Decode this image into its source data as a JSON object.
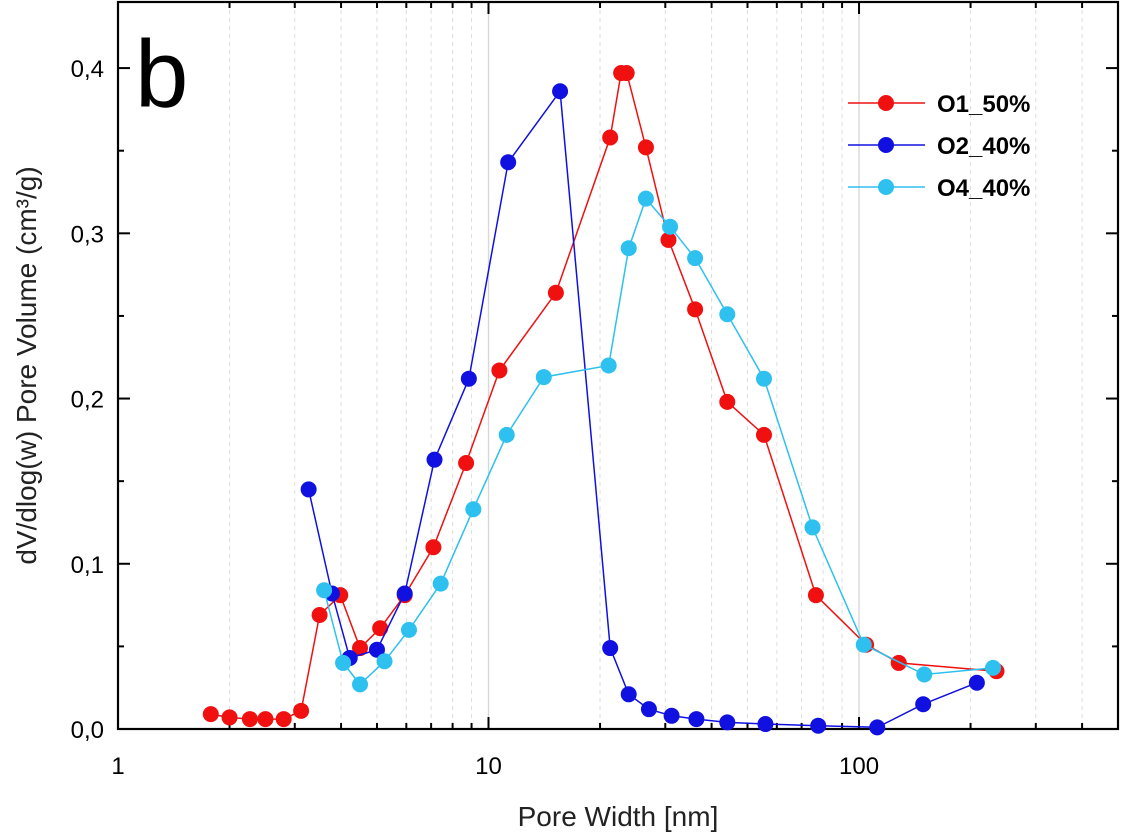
{
  "chart_data": {
    "type": "line",
    "panel_label": "b",
    "xlabel": "Pore Width [nm]",
    "ylabel": "dV/dlog(w) Pore Volume (cm³/g)",
    "xscale": "log",
    "xlim": [
      1,
      500
    ],
    "ylim": [
      0,
      0.44
    ],
    "x_ticks": [
      1,
      10,
      100
    ],
    "x_tick_labels": [
      "1",
      "10",
      "100"
    ],
    "y_ticks": [
      0,
      0.1,
      0.2,
      0.3,
      0.4
    ],
    "y_tick_labels": [
      "0,0",
      "0,1",
      "0,2",
      "0,3",
      "0,4"
    ],
    "grid": "vertical minor log gridlines",
    "legend_position": "top-right",
    "series": [
      {
        "name": "O1_50%",
        "color": "#f01010",
        "x": [
          1.78,
          2.0,
          2.27,
          2.5,
          2.8,
          3.12,
          3.5,
          3.98,
          4.5,
          5.1,
          5.94,
          7.1,
          8.7,
          10.7,
          15.2,
          21.3,
          22.8,
          23.6,
          26.6,
          30.6,
          36.1,
          44.1,
          55.4,
          76.5,
          104.5,
          128,
          235
        ],
        "values": [
          0.009,
          0.007,
          0.006,
          0.006,
          0.006,
          0.011,
          0.069,
          0.081,
          0.049,
          0.061,
          0.081,
          0.11,
          0.161,
          0.217,
          0.264,
          0.358,
          0.397,
          0.397,
          0.352,
          0.296,
          0.254,
          0.198,
          0.178,
          0.081,
          0.051,
          0.04,
          0.035
        ]
      },
      {
        "name": "O2_40%",
        "color": "#1010e0",
        "x": [
          3.27,
          3.78,
          4.22,
          5.0,
          5.94,
          7.15,
          8.85,
          11.3,
          15.6,
          21.3,
          23.9,
          27.1,
          31.2,
          36.4,
          44.1,
          55.9,
          77.6,
          112,
          149,
          208
        ],
        "values": [
          0.145,
          0.082,
          0.043,
          0.048,
          0.082,
          0.163,
          0.212,
          0.343,
          0.386,
          0.049,
          0.021,
          0.012,
          0.008,
          0.006,
          0.004,
          0.003,
          0.002,
          0.001,
          0.015,
          0.028
        ]
      },
      {
        "name": "O4_40%",
        "color": "#2ec0ee",
        "x": [
          3.6,
          4.05,
          4.5,
          5.24,
          6.1,
          7.43,
          9.1,
          11.2,
          14.1,
          21.1,
          23.9,
          26.6,
          30.9,
          36.1,
          44.1,
          55.4,
          74.9,
          103,
          150,
          230
        ],
        "values": [
          0.084,
          0.04,
          0.027,
          0.041,
          0.06,
          0.088,
          0.133,
          0.178,
          0.213,
          0.22,
          0.291,
          0.321,
          0.304,
          0.285,
          0.251,
          0.212,
          0.122,
          0.051,
          0.033,
          0.037
        ]
      }
    ]
  }
}
